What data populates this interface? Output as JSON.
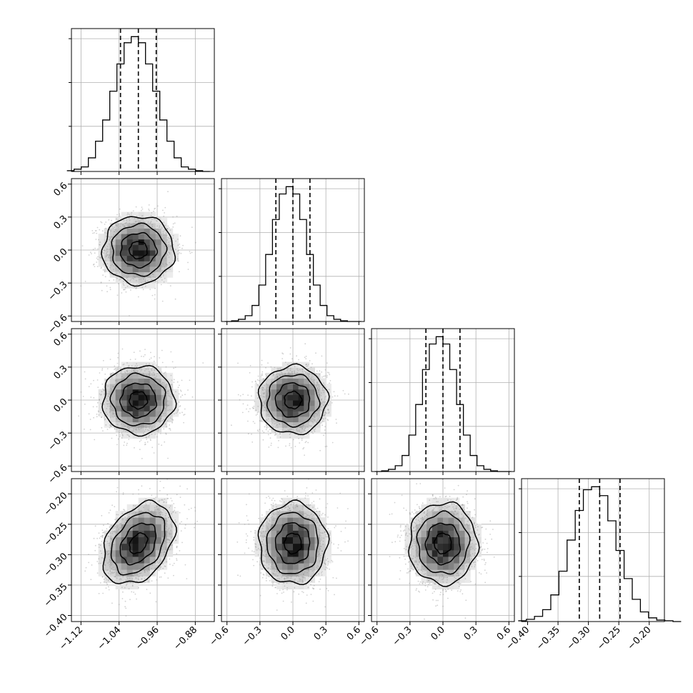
{
  "chart_data": {
    "type": "corner",
    "n_params": 4,
    "colors": {
      "frame": "#000000",
      "grid": "#b0b0b0",
      "scatter": "#9a9a9a",
      "density": "#000000",
      "line": "#000000"
    },
    "params": [
      {
        "range": [
          -1.14,
          -0.84
        ],
        "ticks": [
          -1.12,
          -1.04,
          -0.96,
          -0.88
        ],
        "tick_labels": [
          "−1.12",
          "−1.04",
          "−0.96",
          "−0.88"
        ],
        "mean": -0.9995,
        "sd": 0.0375,
        "quantiles": [
          -1.037,
          -0.9995,
          -0.962
        ]
      },
      {
        "range": [
          -0.65,
          0.65
        ],
        "ticks": [
          -0.6,
          -0.3,
          0.0,
          0.3,
          0.6
        ],
        "tick_labels": [
          "−0.6",
          "−0.3",
          "0.0",
          "0.3",
          "0.6"
        ],
        "mean": 0.0,
        "sd": 0.155,
        "quantiles": [
          -0.155,
          0.0,
          0.155
        ]
      },
      {
        "range": [
          -0.65,
          0.65
        ],
        "ticks": [
          -0.6,
          -0.3,
          0.0,
          0.3,
          0.6
        ],
        "tick_labels": [
          "−0.6",
          "−0.3",
          "0.0",
          "0.3",
          "0.6"
        ],
        "mean": 0.0,
        "sd": 0.155,
        "quantiles": [
          -0.155,
          0.0,
          0.155
        ]
      },
      {
        "range": [
          -0.41,
          -0.175
        ],
        "ticks": [
          -0.4,
          -0.35,
          -0.3,
          -0.25,
          -0.2
        ],
        "tick_labels": [
          "−0.40",
          "−0.35",
          "−0.30",
          "−0.25",
          "−0.20"
        ],
        "mean": -0.2815,
        "sd": 0.0335,
        "quantiles": [
          -0.315,
          -0.2815,
          -0.248
        ]
      }
    ],
    "correlations": [
      [
        1,
        0,
        0,
        0.35
      ],
      [
        0,
        1,
        0,
        0
      ],
      [
        0,
        0,
        1,
        0
      ],
      [
        0.35,
        0,
        0,
        1
      ]
    ],
    "histograms": [
      {
        "bins": 20,
        "counts": [
          1,
          3,
          6,
          18,
          40,
          68,
          106,
          142,
          170,
          178,
          170,
          142,
          106,
          68,
          40,
          18,
          6,
          3,
          1,
          0
        ]
      },
      {
        "bins": 20,
        "counts": [
          0,
          1,
          3,
          8,
          22,
          50,
          92,
          140,
          175,
          185,
          175,
          140,
          92,
          50,
          22,
          8,
          3,
          1,
          0,
          0
        ]
      },
      {
        "bins": 20,
        "counts": [
          0,
          1,
          3,
          8,
          22,
          50,
          92,
          140,
          175,
          185,
          175,
          140,
          92,
          50,
          22,
          8,
          3,
          1,
          0,
          0
        ]
      },
      {
        "bins": 20,
        "counts": [
          1,
          3,
          7,
          16,
          36,
          68,
          110,
          150,
          178,
          182,
          170,
          136,
          96,
          58,
          30,
          13,
          5,
          2,
          1,
          0
        ]
      }
    ],
    "grid": true,
    "contour_levels_sigma": [
      0.5,
      1.0,
      1.5,
      2.0
    ]
  }
}
